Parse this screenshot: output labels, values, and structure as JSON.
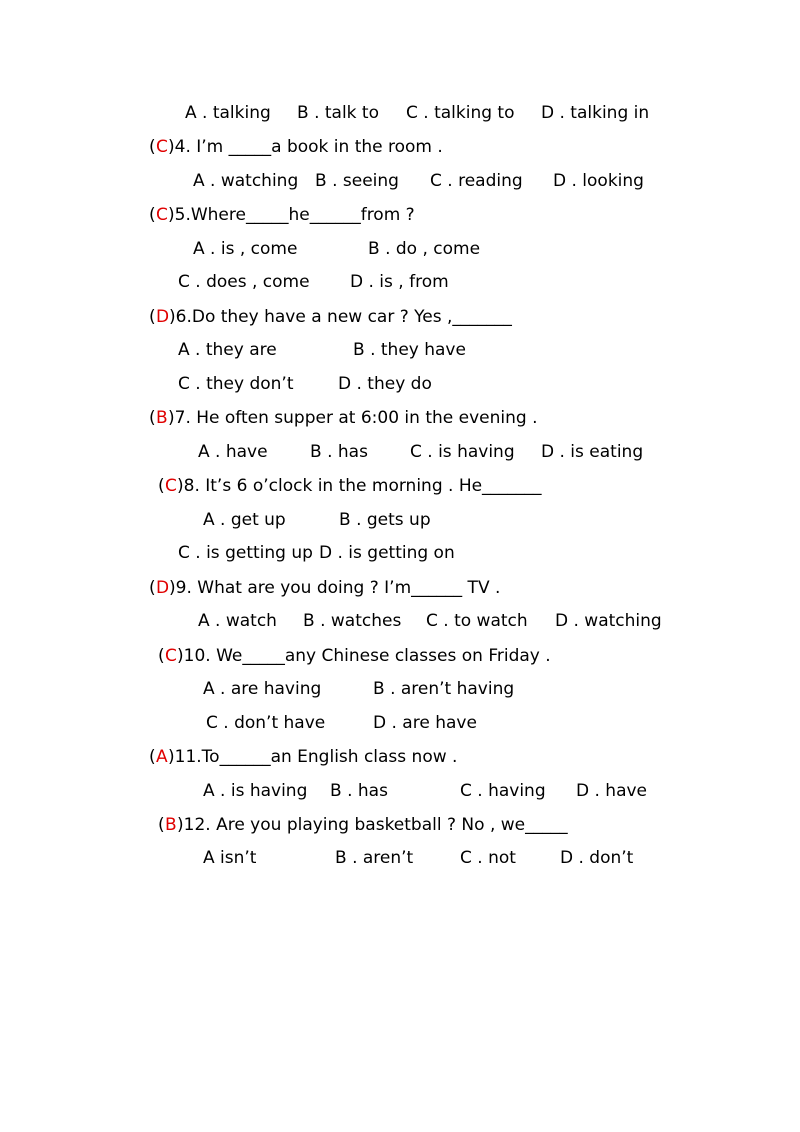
{
  "intro_options": [
    "A . talking",
    "B . talk to",
    "C . talking to",
    "D . talking in"
  ],
  "questions": [
    {
      "open": "(",
      "answer": "C",
      "stem": ")4. I’m _____a book in the room .",
      "options": [
        [
          "A . watching",
          "B . seeing",
          "C . reading",
          "D . looking"
        ]
      ]
    },
    {
      "open": "(",
      "answer": "C",
      "stem": ")5.Where_____he______from ?",
      "options": [
        [
          "A . is , come",
          "B . do , come"
        ],
        [
          "C . does , come",
          "D . is , from"
        ]
      ]
    },
    {
      "open": "(",
      "answer": "D",
      "stem": ")6.Do they have a new car ? Yes ,_______",
      "options": [
        [
          "A . they are",
          "B . they have"
        ],
        [
          "C . they don’t",
          "D . they do"
        ]
      ]
    },
    {
      "open": "(",
      "answer": "B",
      "stem": ")7. He often supper at 6:00 in the evening .",
      "options": [
        [
          "A . have",
          "B . has",
          "C . is having",
          "D . is eating"
        ]
      ]
    },
    {
      "open": "(",
      "answer": "C",
      "stem": ")8. It’s 6 o’clock in the morning . He_______",
      "options": [
        [
          "A . get up",
          "B . gets up"
        ],
        [
          "C . is getting up",
          "D . is getting on"
        ]
      ]
    },
    {
      "open": "(",
      "answer": "D",
      "stem": ")9. What are you doing ? I’m______ TV .",
      "options": [
        [
          "A . watch",
          "B . watches",
          "C . to watch",
          "D . watching"
        ]
      ]
    },
    {
      "open": "(",
      "answer": "C",
      "stem": ")10. We_____any Chinese classes on Friday .",
      "options": [
        [
          "A . are having",
          "B . aren’t having"
        ],
        [
          "C . don’t have",
          "D . are have"
        ]
      ]
    },
    {
      "open": "(",
      "answer": "A",
      "stem": ")11.To______an English class now .",
      "options": [
        [
          "A . is having",
          "B . has",
          "C . having",
          "D . have"
        ]
      ]
    },
    {
      "open": "(",
      "answer": "B",
      "stem": ")12. Are you playing basketball ? No , we_____",
      "options": [
        [
          "A isn’t",
          "B . aren’t",
          "C . not",
          "D . don’t"
        ]
      ]
    }
  ]
}
